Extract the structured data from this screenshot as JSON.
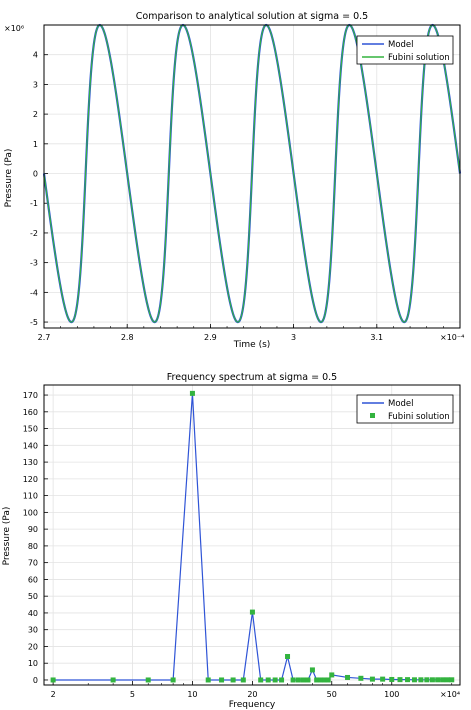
{
  "chart_data": [
    {
      "type": "line",
      "title": "Comparison to analytical solution at sigma = 0.5",
      "xlabel": "Time (s)",
      "ylabel": "Pressure (Pa)",
      "x_multiplier": "×10⁻⁴",
      "y_multiplier": "×10⁶",
      "xlim": [
        2.7,
        3.2
      ],
      "ylim": [
        -5.2,
        5.0
      ],
      "xticks": [
        "2.7",
        "2.8",
        "2.9",
        "3",
        "3.1"
      ],
      "yticks": [
        "-5",
        "-4",
        "-3",
        "-2",
        "-1",
        "0",
        "1",
        "2",
        "3",
        "4"
      ],
      "grid": true,
      "legend_position": "top-right",
      "wave": {
        "period": 0.1,
        "amplitude": 5.0,
        "start": 2.7,
        "end": 3.2,
        "shape": "Fubini distorted sine",
        "sigma": 0.5
      },
      "series": [
        {
          "name": "Model",
          "color": "#2f54d6"
        },
        {
          "name": "Fubini solution",
          "color": "#33b33f"
        }
      ]
    },
    {
      "type": "line",
      "title": "Frequency spectrum at sigma = 0.5",
      "xlabel": "Frequency",
      "ylabel": "Pressure (Pa)",
      "x_multiplier": "×10⁴",
      "x_scale": "log",
      "xlim": [
        1.8,
        220
      ],
      "ylim": [
        -3,
        176
      ],
      "xticks": [
        "2",
        "5",
        "10",
        "20",
        "50",
        "100"
      ],
      "yticks": [
        "0",
        "10",
        "20",
        "30",
        "40",
        "50",
        "60",
        "70",
        "80",
        "90",
        "100",
        "110",
        "120",
        "130",
        "140",
        "150",
        "160",
        "170"
      ],
      "grid": true,
      "legend_position": "top-right",
      "series": [
        {
          "name": "Model",
          "color": "#2f54d6",
          "marker": "line"
        },
        {
          "name": "Fubini solution",
          "color": "#33b33f",
          "marker": "square"
        }
      ],
      "points": [
        [
          2,
          0
        ],
        [
          4,
          0
        ],
        [
          6,
          0
        ],
        [
          8,
          0
        ],
        [
          10,
          171
        ],
        [
          12,
          0
        ],
        [
          14,
          0
        ],
        [
          16,
          0
        ],
        [
          18,
          0
        ],
        [
          20,
          40.5
        ],
        [
          22,
          0
        ],
        [
          24,
          0
        ],
        [
          26,
          0
        ],
        [
          28,
          0
        ],
        [
          30,
          14
        ],
        [
          32,
          0
        ],
        [
          34,
          0
        ],
        [
          36,
          0
        ],
        [
          38,
          0
        ],
        [
          40,
          6
        ],
        [
          42,
          0
        ],
        [
          44,
          0
        ],
        [
          46,
          0
        ],
        [
          48,
          0
        ],
        [
          50,
          3
        ],
        [
          60,
          1.5
        ],
        [
          70,
          1
        ],
        [
          80,
          0.5
        ],
        [
          90,
          0.5
        ],
        [
          100,
          0.3
        ],
        [
          110,
          0.2
        ],
        [
          120,
          0.2
        ],
        [
          130,
          0.1
        ],
        [
          140,
          0.1
        ],
        [
          150,
          0.1
        ],
        [
          160,
          0.1
        ],
        [
          170,
          0.1
        ],
        [
          180,
          0.1
        ],
        [
          190,
          0.1
        ],
        [
          200,
          0.1
        ]
      ]
    }
  ]
}
